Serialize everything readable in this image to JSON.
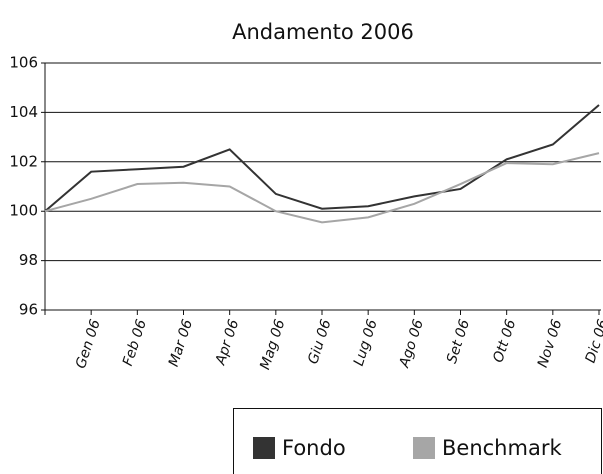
{
  "chart_data": {
    "type": "line",
    "title": "Andamento 2006",
    "categories": [
      null,
      "Gen 06",
      "Feb 06",
      "Mar 06",
      "Apr 06",
      "Mag 06",
      "Giu 06",
      "Lug 06",
      "Ago 06",
      "Set 06",
      "Ott 06",
      "Nov 06",
      "Dic 06"
    ],
    "series": [
      {
        "name": "Fondo",
        "color": "#333333",
        "values": [
          100,
          101.6,
          101.7,
          101.8,
          102.5,
          100.7,
          100.1,
          100.2,
          100.6,
          100.9,
          102.1,
          102.7,
          104.3
        ]
      },
      {
        "name": "Benchmark",
        "color": "#a6a6a6",
        "values": [
          100,
          100.5,
          101.1,
          101.15,
          101.0,
          100.0,
          99.55,
          99.75,
          100.3,
          101.1,
          101.95,
          101.9,
          102.35
        ]
      }
    ],
    "ylim": [
      96,
      106
    ],
    "yticks": [
      96,
      98,
      100,
      102,
      104,
      106
    ],
    "grid": true,
    "legend": "bottom-right"
  }
}
